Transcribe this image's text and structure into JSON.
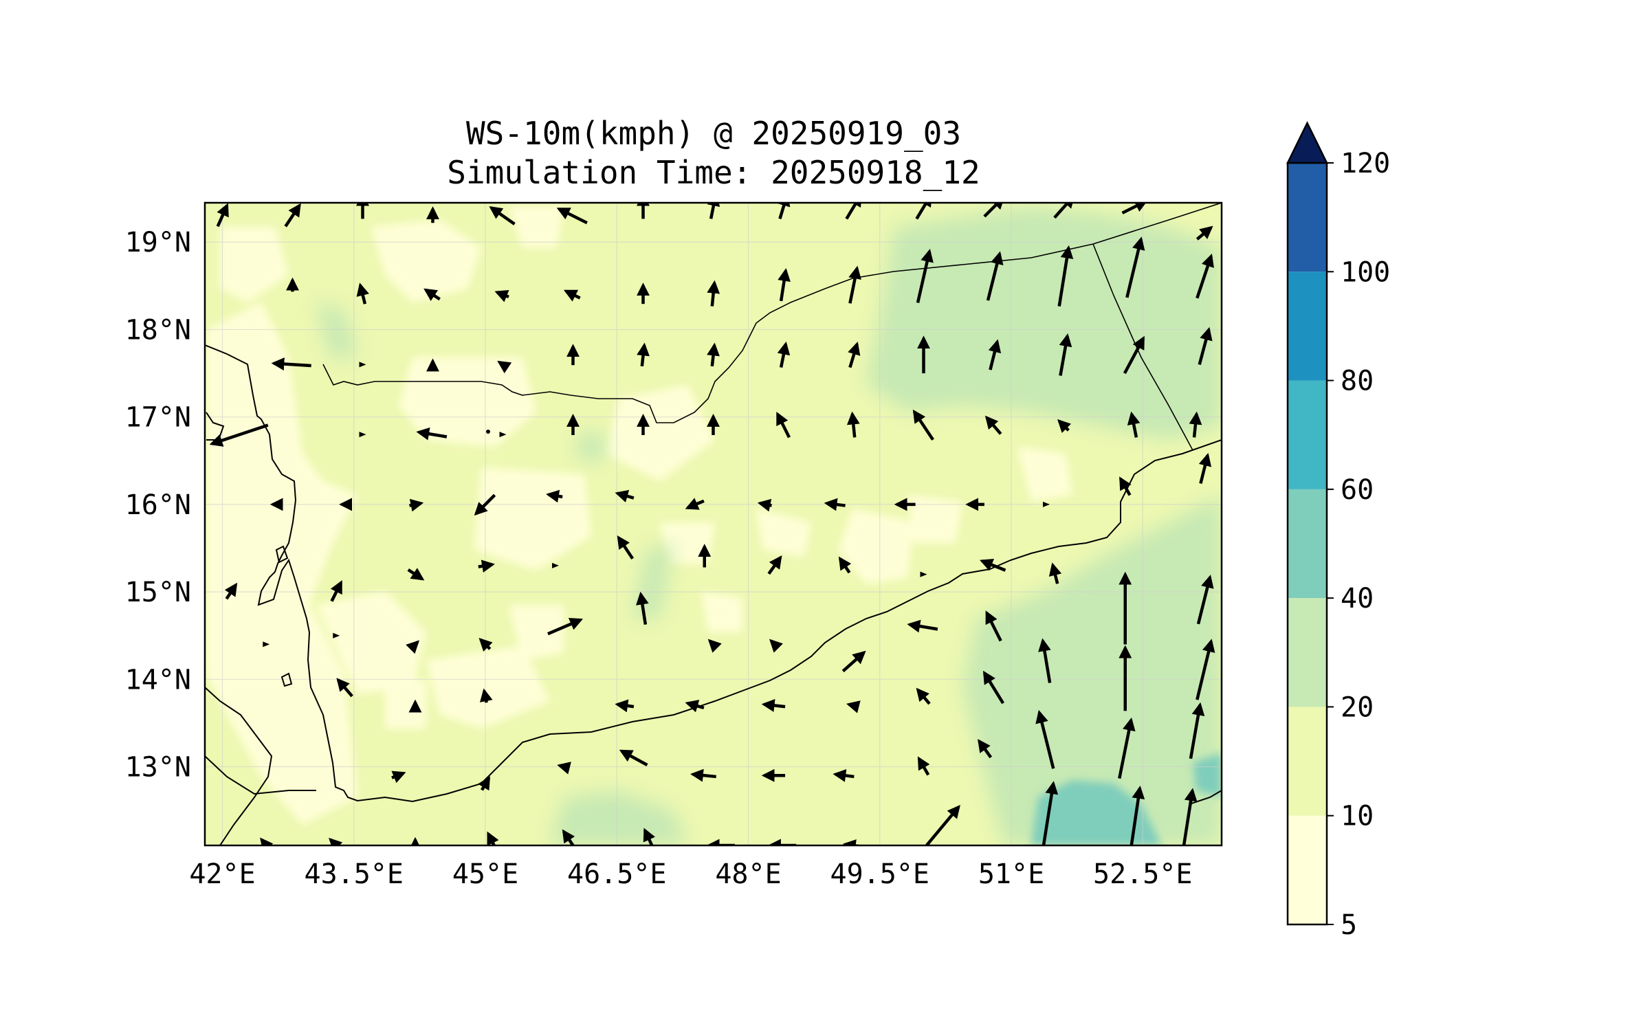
{
  "title": {
    "line1": "WS-10m(kmph) @ 20250919_03",
    "line2": "Simulation Time: 20250918_12"
  },
  "map": {
    "lon_range": [
      41.8,
      53.4
    ],
    "lat_range": [
      12.1,
      19.45
    ],
    "x_ticks": [
      "42°E",
      "43.5°E",
      "45°E",
      "46.5°E",
      "48°E",
      "49.5°E",
      "51°E",
      "52.5°E"
    ],
    "x_tick_values": [
      42,
      43.5,
      45,
      46.5,
      48,
      49.5,
      51,
      52.5
    ],
    "y_ticks": [
      "13°N",
      "14°N",
      "15°N",
      "16°N",
      "17°N",
      "18°N",
      "19°N"
    ],
    "y_tick_values": [
      13,
      14,
      15,
      16,
      17,
      18,
      19
    ],
    "grid": true
  },
  "colorbar": {
    "levels": [
      5,
      10,
      20,
      40,
      60,
      80,
      100,
      120
    ],
    "labels": [
      "5",
      "10",
      "20",
      "40",
      "60",
      "80",
      "100",
      "120"
    ],
    "colors": [
      "#ffffd9",
      "#edf8b1",
      "#c7e9b4",
      "#7fcdbb",
      "#41b6c4",
      "#1d91c0",
      "#225ea8",
      "#253494"
    ],
    "extend_color": "#081d58",
    "extend": "max"
  },
  "chart_data": {
    "type": "heatmap",
    "title": "WS-10m(kmph) @ 20250919_03",
    "subtitle": "Simulation Time: 20250918_12",
    "variable": "WS-10m(kmph)",
    "xlim": [
      41.8,
      53.4
    ],
    "ylim": [
      12.1,
      19.45
    ],
    "regions": [
      {
        "lon": 50.4,
        "lat": 18.2,
        "value_range": "20-40"
      },
      {
        "lon": 52.3,
        "lat": 17.5,
        "value_range": "20-40"
      },
      {
        "lon": 51.5,
        "lat": 13.6,
        "value_range": "20-40"
      },
      {
        "lon": 52.6,
        "lat": 14.8,
        "value_range": "20-40"
      },
      {
        "lon": 51.9,
        "lat": 12.4,
        "value_range": "40-60"
      },
      {
        "lon": 53.2,
        "lat": 12.9,
        "value_range": "40-60"
      },
      {
        "lon": 44.5,
        "lat": 16.3,
        "value_range": "5-10"
      },
      {
        "lon": 43.0,
        "lat": 15.0,
        "value_range": "5-10"
      }
    ],
    "wind_vectors": [
      {
        "lon": 42.0,
        "lat": 19.3,
        "u": 0.4,
        "v": 0.9
      },
      {
        "lon": 42.8,
        "lat": 19.3,
        "u": 0.6,
        "v": 0.9
      },
      {
        "lon": 43.6,
        "lat": 19.4,
        "u": 0.0,
        "v": 1.0
      },
      {
        "lon": 44.4,
        "lat": 19.3,
        "u": 0.0,
        "v": 0.6
      },
      {
        "lon": 45.2,
        "lat": 19.3,
        "u": -1.0,
        "v": 0.7
      },
      {
        "lon": 46.0,
        "lat": 19.3,
        "u": -1.2,
        "v": 0.6
      },
      {
        "lon": 46.8,
        "lat": 19.4,
        "u": 0.0,
        "v": 1.0
      },
      {
        "lon": 47.6,
        "lat": 19.4,
        "u": 0.2,
        "v": 1.0
      },
      {
        "lon": 48.4,
        "lat": 19.4,
        "u": 0.3,
        "v": 1.0
      },
      {
        "lon": 49.2,
        "lat": 19.4,
        "u": 0.6,
        "v": 1.0
      },
      {
        "lon": 50.0,
        "lat": 19.4,
        "u": 0.6,
        "v": 1.0
      },
      {
        "lon": 50.8,
        "lat": 19.4,
        "u": 0.8,
        "v": 0.8
      },
      {
        "lon": 51.6,
        "lat": 19.4,
        "u": 0.8,
        "v": 0.9
      },
      {
        "lon": 52.4,
        "lat": 19.4,
        "u": 1.0,
        "v": 0.5
      },
      {
        "lon": 53.2,
        "lat": 19.1,
        "u": 0.6,
        "v": 0.5
      },
      {
        "lon": 42.8,
        "lat": 18.5,
        "u": 0.0,
        "v": 0.5
      },
      {
        "lon": 43.6,
        "lat": 18.4,
        "u": -0.2,
        "v": 0.8
      },
      {
        "lon": 44.4,
        "lat": 18.4,
        "u": -0.6,
        "v": 0.4
      },
      {
        "lon": 45.2,
        "lat": 18.4,
        "u": -0.5,
        "v": 0.2
      },
      {
        "lon": 46.0,
        "lat": 18.4,
        "u": -0.6,
        "v": 0.3
      },
      {
        "lon": 46.8,
        "lat": 18.4,
        "u": 0.0,
        "v": 0.8
      },
      {
        "lon": 47.6,
        "lat": 18.4,
        "u": 0.1,
        "v": 1.0
      },
      {
        "lon": 48.4,
        "lat": 18.5,
        "u": 0.2,
        "v": 1.3
      },
      {
        "lon": 49.2,
        "lat": 18.5,
        "u": 0.3,
        "v": 1.5
      },
      {
        "lon": 50.0,
        "lat": 18.6,
        "u": 0.5,
        "v": 2.2
      },
      {
        "lon": 50.8,
        "lat": 18.6,
        "u": 0.5,
        "v": 2.0
      },
      {
        "lon": 51.6,
        "lat": 18.6,
        "u": 0.4,
        "v": 2.5
      },
      {
        "lon": 52.4,
        "lat": 18.7,
        "u": 0.6,
        "v": 2.5
      },
      {
        "lon": 53.2,
        "lat": 18.6,
        "u": 0.6,
        "v": 1.8
      },
      {
        "lon": 42.8,
        "lat": 17.6,
        "u": -1.6,
        "v": 0.1
      },
      {
        "lon": 43.6,
        "lat": 17.6,
        "u": 0.0,
        "v": 0.0
      },
      {
        "lon": 44.4,
        "lat": 17.6,
        "u": 0.0,
        "v": 0.3
      },
      {
        "lon": 45.2,
        "lat": 17.6,
        "u": -0.3,
        "v": 0.2
      },
      {
        "lon": 46.0,
        "lat": 17.7,
        "u": 0.0,
        "v": 0.8
      },
      {
        "lon": 46.8,
        "lat": 17.7,
        "u": 0.1,
        "v": 0.9
      },
      {
        "lon": 47.6,
        "lat": 17.7,
        "u": 0.1,
        "v": 0.9
      },
      {
        "lon": 48.4,
        "lat": 17.7,
        "u": 0.2,
        "v": 1.0
      },
      {
        "lon": 49.2,
        "lat": 17.7,
        "u": 0.3,
        "v": 1.0
      },
      {
        "lon": 50.0,
        "lat": 17.7,
        "u": 0.0,
        "v": 1.5
      },
      {
        "lon": 50.8,
        "lat": 17.7,
        "u": 0.3,
        "v": 1.2
      },
      {
        "lon": 51.6,
        "lat": 17.7,
        "u": 0.3,
        "v": 1.7
      },
      {
        "lon": 52.4,
        "lat": 17.7,
        "u": 0.8,
        "v": 1.5
      },
      {
        "lon": 53.2,
        "lat": 17.8,
        "u": 0.4,
        "v": 1.5
      },
      {
        "lon": 42.2,
        "lat": 16.8,
        "u": -2.4,
        "v": -0.8
      },
      {
        "lon": 43.6,
        "lat": 16.8,
        "u": 0.0,
        "v": 0.0
      },
      {
        "lon": 44.4,
        "lat": 16.8,
        "u": -1.2,
        "v": 0.2
      },
      {
        "lon": 45.2,
        "lat": 16.8,
        "u": 0.0,
        "v": 0.0
      },
      {
        "lon": 46.0,
        "lat": 16.9,
        "u": 0.0,
        "v": 0.8
      },
      {
        "lon": 46.8,
        "lat": 16.9,
        "u": 0.0,
        "v": 0.8
      },
      {
        "lon": 47.6,
        "lat": 16.9,
        "u": 0.0,
        "v": 0.8
      },
      {
        "lon": 48.4,
        "lat": 16.9,
        "u": -0.5,
        "v": 1.0
      },
      {
        "lon": 49.2,
        "lat": 16.9,
        "u": -0.1,
        "v": 1.0
      },
      {
        "lon": 50.0,
        "lat": 16.9,
        "u": -0.8,
        "v": 1.2
      },
      {
        "lon": 50.8,
        "lat": 16.9,
        "u": -0.6,
        "v": 0.7
      },
      {
        "lon": 51.6,
        "lat": 16.9,
        "u": -0.4,
        "v": 0.4
      },
      {
        "lon": 52.4,
        "lat": 16.9,
        "u": -0.2,
        "v": 1.0
      },
      {
        "lon": 53.1,
        "lat": 16.9,
        "u": 0.1,
        "v": 1.0
      },
      {
        "lon": 42.6,
        "lat": 16.0,
        "u": -0.2,
        "v": 0.0
      },
      {
        "lon": 43.4,
        "lat": 16.0,
        "u": -0.3,
        "v": 0.0
      },
      {
        "lon": 44.2,
        "lat": 16.0,
        "u": 0.5,
        "v": 0.1
      },
      {
        "lon": 45.0,
        "lat": 16.0,
        "u": -0.8,
        "v": -0.8
      },
      {
        "lon": 45.8,
        "lat": 16.1,
        "u": -0.6,
        "v": 0.1
      },
      {
        "lon": 46.6,
        "lat": 16.1,
        "u": -0.7,
        "v": 0.2
      },
      {
        "lon": 47.4,
        "lat": 16.0,
        "u": -0.7,
        "v": -0.3
      },
      {
        "lon": 48.2,
        "lat": 16.0,
        "u": -0.5,
        "v": 0.1
      },
      {
        "lon": 49.0,
        "lat": 16.0,
        "u": -0.8,
        "v": 0.1
      },
      {
        "lon": 49.8,
        "lat": 16.0,
        "u": -0.8,
        "v": 0.0
      },
      {
        "lon": 50.6,
        "lat": 16.0,
        "u": -0.7,
        "v": 0.0
      },
      {
        "lon": 51.4,
        "lat": 16.0,
        "u": 0.0,
        "v": 0.0
      },
      {
        "lon": 52.3,
        "lat": 16.2,
        "u": -0.4,
        "v": 0.7
      },
      {
        "lon": 53.2,
        "lat": 16.4,
        "u": 0.3,
        "v": 1.2
      },
      {
        "lon": 42.1,
        "lat": 15.0,
        "u": 0.4,
        "v": 0.6
      },
      {
        "lon": 43.3,
        "lat": 15.0,
        "u": 0.4,
        "v": 0.8
      },
      {
        "lon": 44.2,
        "lat": 15.2,
        "u": 0.6,
        "v": -0.4
      },
      {
        "lon": 45.0,
        "lat": 15.3,
        "u": 0.6,
        "v": 0.1
      },
      {
        "lon": 45.8,
        "lat": 15.3,
        "u": 0.0,
        "v": 0.0
      },
      {
        "lon": 46.6,
        "lat": 15.5,
        "u": -0.6,
        "v": 0.9
      },
      {
        "lon": 47.5,
        "lat": 15.4,
        "u": 0.0,
        "v": 0.9
      },
      {
        "lon": 48.3,
        "lat": 15.3,
        "u": 0.5,
        "v": 0.7
      },
      {
        "lon": 49.1,
        "lat": 15.3,
        "u": -0.4,
        "v": 0.6
      },
      {
        "lon": 50.0,
        "lat": 15.2,
        "u": 0.0,
        "v": 0.0
      },
      {
        "lon": 50.8,
        "lat": 15.3,
        "u": -1.0,
        "v": 0.4
      },
      {
        "lon": 51.5,
        "lat": 15.2,
        "u": -0.2,
        "v": 0.8
      },
      {
        "lon": 52.3,
        "lat": 14.8,
        "u": 0.0,
        "v": 3.0
      },
      {
        "lon": 53.2,
        "lat": 14.9,
        "u": 0.5,
        "v": 2.0
      },
      {
        "lon": 42.5,
        "lat": 14.4,
        "u": 0.0,
        "v": 0.0
      },
      {
        "lon": 43.3,
        "lat": 14.5,
        "u": 0.0,
        "v": 0.0
      },
      {
        "lon": 44.2,
        "lat": 14.4,
        "u": 0.2,
        "v": 0.2
      },
      {
        "lon": 45.0,
        "lat": 14.4,
        "u": -0.4,
        "v": 0.4
      },
      {
        "lon": 45.9,
        "lat": 14.6,
        "u": 1.4,
        "v": 0.6
      },
      {
        "lon": 46.8,
        "lat": 14.8,
        "u": -0.2,
        "v": 1.3
      },
      {
        "lon": 47.6,
        "lat": 14.4,
        "u": -0.3,
        "v": 0.3
      },
      {
        "lon": 48.3,
        "lat": 14.4,
        "u": -0.3,
        "v": 0.3
      },
      {
        "lon": 49.2,
        "lat": 14.2,
        "u": 0.9,
        "v": 0.8
      },
      {
        "lon": 50.0,
        "lat": 14.6,
        "u": -1.2,
        "v": 0.2
      },
      {
        "lon": 50.8,
        "lat": 14.6,
        "u": -0.6,
        "v": 1.2
      },
      {
        "lon": 51.4,
        "lat": 14.2,
        "u": -0.3,
        "v": 1.8
      },
      {
        "lon": 52.3,
        "lat": 14.0,
        "u": 0.0,
        "v": 2.7
      },
      {
        "lon": 53.2,
        "lat": 14.1,
        "u": 0.6,
        "v": 2.5
      },
      {
        "lon": 43.4,
        "lat": 13.9,
        "u": -0.6,
        "v": 0.7
      },
      {
        "lon": 44.2,
        "lat": 13.7,
        "u": 0.0,
        "v": 0.3
      },
      {
        "lon": 45.0,
        "lat": 13.8,
        "u": -0.1,
        "v": 0.5
      },
      {
        "lon": 46.6,
        "lat": 13.7,
        "u": -0.7,
        "v": 0.1
      },
      {
        "lon": 47.4,
        "lat": 13.7,
        "u": -0.7,
        "v": 0.2
      },
      {
        "lon": 48.3,
        "lat": 13.7,
        "u": -0.9,
        "v": 0.1
      },
      {
        "lon": 49.2,
        "lat": 13.7,
        "u": -0.4,
        "v": 0.1
      },
      {
        "lon": 50.0,
        "lat": 13.8,
        "u": -0.5,
        "v": 0.6
      },
      {
        "lon": 50.8,
        "lat": 13.9,
        "u": -0.8,
        "v": 1.3
      },
      {
        "lon": 51.4,
        "lat": 13.3,
        "u": -0.6,
        "v": 2.4
      },
      {
        "lon": 52.3,
        "lat": 13.2,
        "u": 0.5,
        "v": 2.5
      },
      {
        "lon": 53.1,
        "lat": 13.4,
        "u": 0.4,
        "v": 2.3
      },
      {
        "lon": 44.0,
        "lat": 12.9,
        "u": 0.5,
        "v": 0.2
      },
      {
        "lon": 45.0,
        "lat": 12.8,
        "u": 0.3,
        "v": 0.5
      },
      {
        "lon": 45.9,
        "lat": 13.0,
        "u": -0.4,
        "v": 0.1
      },
      {
        "lon": 46.7,
        "lat": 13.1,
        "u": -1.1,
        "v": 0.6
      },
      {
        "lon": 47.5,
        "lat": 12.9,
        "u": -1.0,
        "v": 0.1
      },
      {
        "lon": 48.3,
        "lat": 12.9,
        "u": -0.9,
        "v": 0.0
      },
      {
        "lon": 49.1,
        "lat": 12.9,
        "u": -0.8,
        "v": 0.1
      },
      {
        "lon": 50.0,
        "lat": 13.0,
        "u": -0.4,
        "v": 0.7
      },
      {
        "lon": 50.7,
        "lat": 13.2,
        "u": -0.5,
        "v": 0.7
      },
      {
        "lon": 50.2,
        "lat": 12.3,
        "u": 1.5,
        "v": 1.8
      },
      {
        "lon": 51.4,
        "lat": 12.3,
        "u": 0.6,
        "v": 3.8
      },
      {
        "lon": 52.4,
        "lat": 12.3,
        "u": 0.5,
        "v": 3.4
      },
      {
        "lon": 53.0,
        "lat": 12.3,
        "u": 0.5,
        "v": 3.2
      },
      {
        "lon": 42.5,
        "lat": 12.1,
        "u": -0.4,
        "v": 0.5
      },
      {
        "lon": 43.3,
        "lat": 12.1,
        "u": -0.5,
        "v": 0.5
      },
      {
        "lon": 44.2,
        "lat": 12.1,
        "u": 0.0,
        "v": 0.5
      },
      {
        "lon": 45.1,
        "lat": 12.1,
        "u": -0.5,
        "v": 1.0
      },
      {
        "lon": 46.0,
        "lat": 12.1,
        "u": -0.8,
        "v": 1.2
      },
      {
        "lon": 46.9,
        "lat": 12.1,
        "u": -0.6,
        "v": 1.3
      },
      {
        "lon": 47.7,
        "lat": 12.1,
        "u": -1.1,
        "v": 0.0
      },
      {
        "lon": 48.4,
        "lat": 12.1,
        "u": -1.1,
        "v": 0.0
      },
      {
        "lon": 49.2,
        "lat": 12.1,
        "u": -0.7,
        "v": 0.1
      }
    ]
  }
}
